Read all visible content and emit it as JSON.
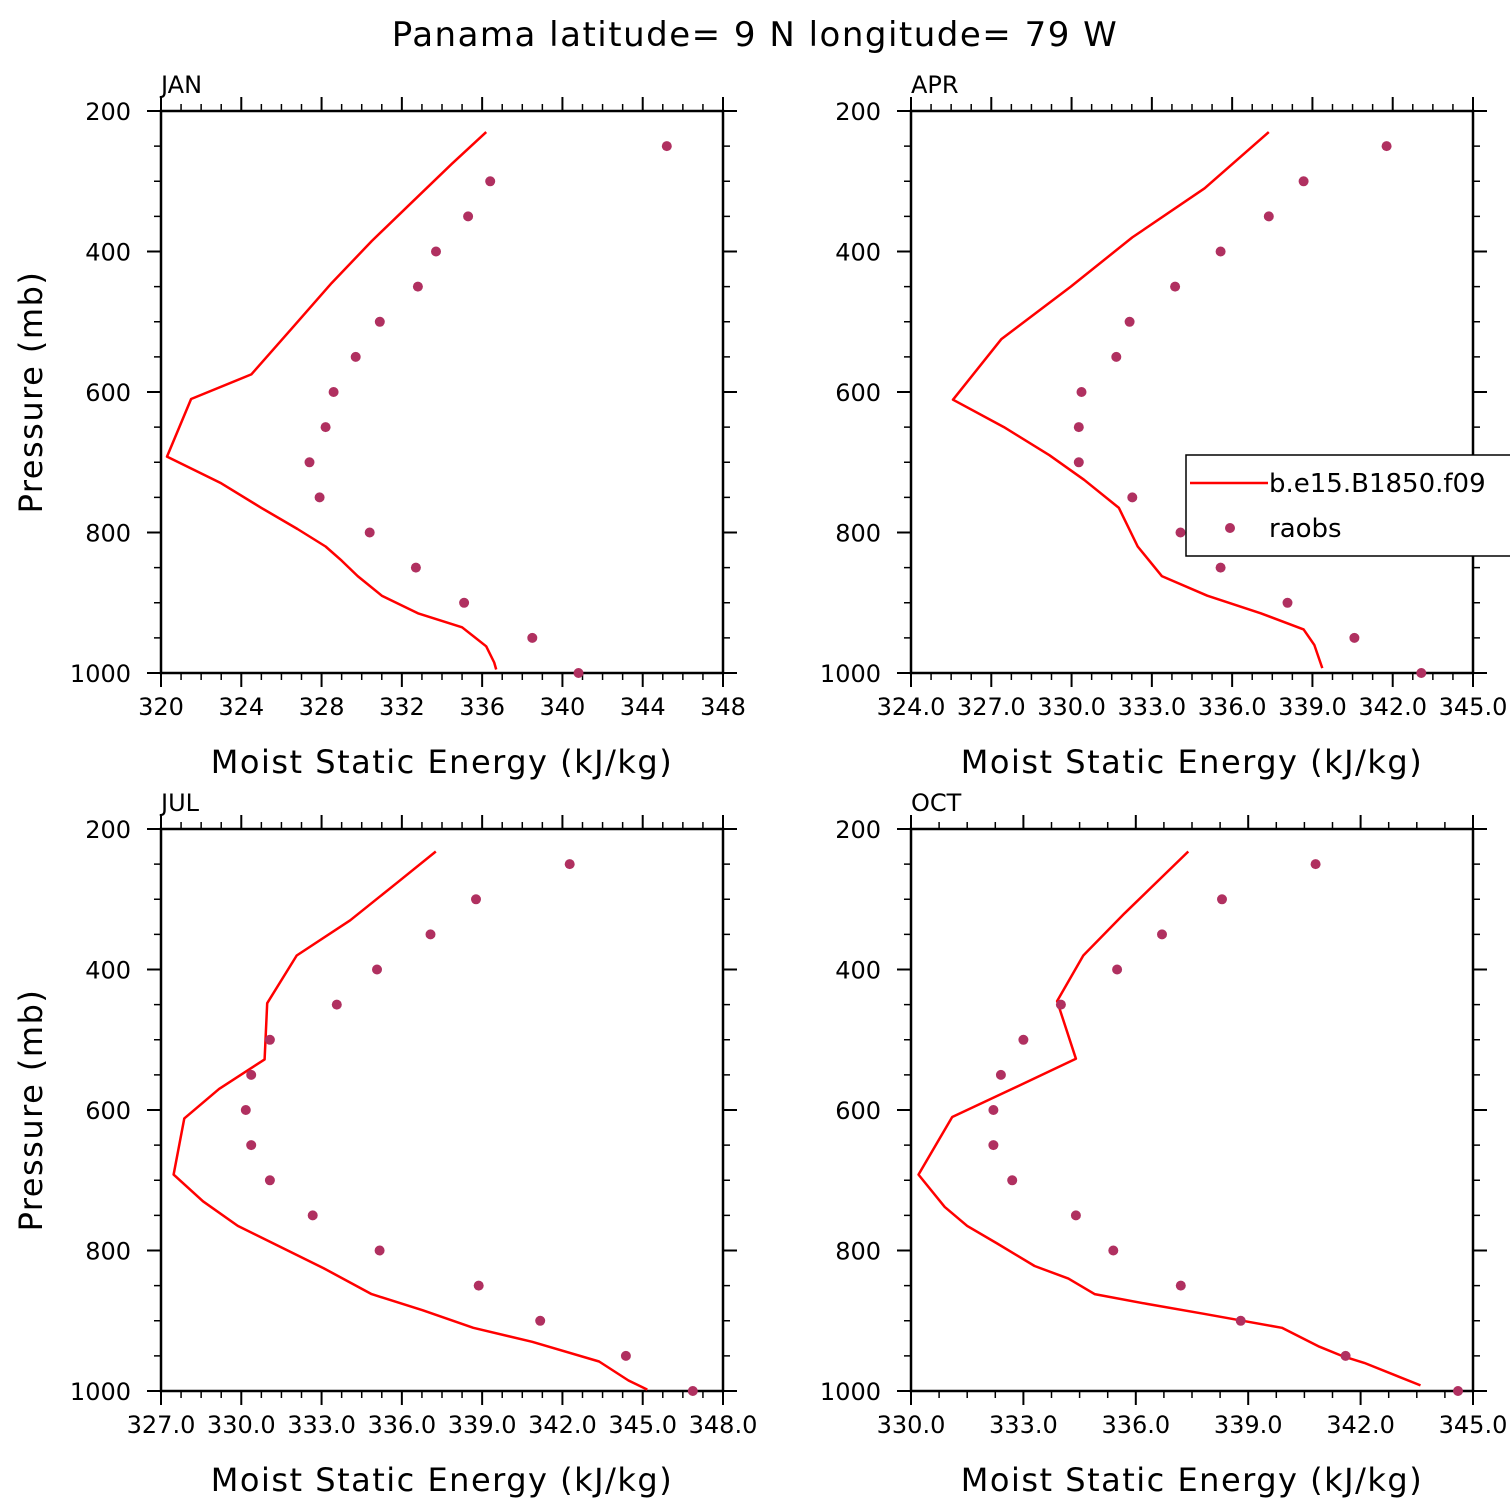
{
  "title": "Panama  latitude= 9 N longitude= 79 W",
  "colors": {
    "model": "#ff0000",
    "obs": "#b03060",
    "axis": "#000000"
  },
  "legend": {
    "model": "b.e15.B1850.f09",
    "obs": "raobs"
  },
  "chart_data": [
    {
      "panel": "JAN",
      "type": "line+scatter",
      "xlabel": "Moist Static Energy (kJ/kg)",
      "ylabel": "Pressure (mb)",
      "xlim": [
        320,
        348
      ],
      "ylim": [
        1000,
        200
      ],
      "xticks": [
        "320",
        "324",
        "328",
        "332",
        "336",
        "340",
        "344",
        "348"
      ],
      "yticks": [
        "200",
        "400",
        "600",
        "800",
        "1000"
      ],
      "model_name": "b.e15.B1850.f09",
      "model": [
        [
          336.2,
          230
        ],
        [
          334.5,
          275
        ],
        [
          332.5,
          330
        ],
        [
          330.5,
          385
        ],
        [
          328.5,
          445
        ],
        [
          326.5,
          510
        ],
        [
          324.5,
          575
        ],
        [
          321.5,
          610
        ],
        [
          320.3,
          692
        ],
        [
          323,
          730
        ],
        [
          325,
          765
        ],
        [
          326.8,
          795
        ],
        [
          328.2,
          820
        ],
        [
          329,
          840
        ],
        [
          329.8,
          862
        ],
        [
          331,
          890
        ],
        [
          332.8,
          915
        ],
        [
          335,
          935
        ],
        [
          336.2,
          962
        ],
        [
          336.6,
          985
        ],
        [
          336.7,
          995
        ]
      ],
      "obs_name": "raobs",
      "obs": [
        [
          345.2,
          250
        ],
        [
          336.4,
          300
        ],
        [
          335.3,
          350
        ],
        [
          333.7,
          400
        ],
        [
          332.8,
          450
        ],
        [
          330.9,
          500
        ],
        [
          329.7,
          550
        ],
        [
          328.6,
          600
        ],
        [
          328.2,
          650
        ],
        [
          327.4,
          700
        ],
        [
          327.9,
          750
        ],
        [
          330.4,
          800
        ],
        [
          332.7,
          850
        ],
        [
          335.1,
          900
        ],
        [
          338.5,
          950
        ],
        [
          340.8,
          1000
        ]
      ]
    },
    {
      "panel": "APR",
      "type": "line+scatter",
      "xlabel": "Moist Static Energy (kJ/kg)",
      "ylabel": "",
      "xlim": [
        324.03,
        345.03
      ],
      "ylim": [
        1000,
        200
      ],
      "xticks": [
        "324.0",
        "327.0",
        "330.0",
        "333.0",
        "336.0",
        "339.0",
        "342.0",
        "345.0"
      ],
      "yticks": [
        "200",
        "400",
        "600",
        "800",
        "1000"
      ],
      "model_name": "b.e15.B1850.f09",
      "model": [
        [
          337.4,
          230
        ],
        [
          335,
          310
        ],
        [
          332.3,
          380
        ],
        [
          330,
          450
        ],
        [
          327.4,
          525
        ],
        [
          325.6,
          611
        ],
        [
          327.5,
          650
        ],
        [
          329.2,
          690
        ],
        [
          330.5,
          725
        ],
        [
          331.8,
          765
        ],
        [
          332.5,
          820
        ],
        [
          333.4,
          862
        ],
        [
          335.1,
          890
        ],
        [
          337.1,
          915
        ],
        [
          338.7,
          938
        ],
        [
          339.1,
          960
        ],
        [
          339.4,
          993
        ]
      ],
      "obs_name": "raobs",
      "obs": [
        [
          341.8,
          250
        ],
        [
          338.7,
          300
        ],
        [
          337.4,
          350
        ],
        [
          335.6,
          400
        ],
        [
          333.9,
          450
        ],
        [
          332.2,
          500
        ],
        [
          331.7,
          550
        ],
        [
          330.4,
          600
        ],
        [
          330.3,
          650
        ],
        [
          330.3,
          700
        ],
        [
          332.3,
          750
        ],
        [
          334.1,
          800
        ],
        [
          335.6,
          850
        ],
        [
          338.1,
          900
        ],
        [
          340.6,
          950
        ],
        [
          343.1,
          1000
        ]
      ]
    },
    {
      "panel": "JUL",
      "type": "line+scatter",
      "xlabel": "Moist Static Energy (kJ/kg)",
      "ylabel": "Pressure (mb)",
      "xlim": [
        327.03,
        348.03
      ],
      "ylim": [
        1000,
        200
      ],
      "xticks": [
        "327.0",
        "330.0",
        "333.0",
        "336.0",
        "339.0",
        "342.0",
        "345.0",
        "348.0"
      ],
      "yticks": [
        "200",
        "400",
        "600",
        "800",
        "1000"
      ],
      "model_name": "b.e15.B1850.f09",
      "model": [
        [
          337.3,
          232
        ],
        [
          335.9,
          275
        ],
        [
          334.1,
          330
        ],
        [
          332.1,
          380
        ],
        [
          331,
          448
        ],
        [
          330.9,
          528
        ],
        [
          329.2,
          570
        ],
        [
          327.9,
          612
        ],
        [
          327.5,
          692
        ],
        [
          328.6,
          730
        ],
        [
          329.9,
          765
        ],
        [
          331.5,
          795
        ],
        [
          333.1,
          825
        ],
        [
          334.9,
          862
        ],
        [
          336.8,
          885
        ],
        [
          338.7,
          910
        ],
        [
          340.9,
          930
        ],
        [
          343.4,
          958
        ],
        [
          344.5,
          985
        ],
        [
          345.2,
          998
        ]
      ],
      "obs_name": "raobs",
      "obs": [
        [
          342.3,
          250
        ],
        [
          338.8,
          300
        ],
        [
          337.1,
          350
        ],
        [
          335.1,
          400
        ],
        [
          333.6,
          450
        ],
        [
          331.1,
          500
        ],
        [
          330.4,
          550
        ],
        [
          330.2,
          600
        ],
        [
          330.4,
          650
        ],
        [
          331.1,
          700
        ],
        [
          332.7,
          750
        ],
        [
          335.2,
          800
        ],
        [
          338.9,
          850
        ],
        [
          341.2,
          900
        ],
        [
          344.4,
          950
        ],
        [
          346.9,
          1000
        ]
      ]
    },
    {
      "panel": "OCT",
      "type": "line+scatter",
      "xlabel": "Moist Static Energy (kJ/kg)",
      "ylabel": "",
      "xlim": [
        330,
        345
      ],
      "ylim": [
        1000,
        200
      ],
      "xticks": [
        "330.0",
        "333.0",
        "336.0",
        "339.0",
        "342.0",
        "345.0"
      ],
      "yticks": [
        "200",
        "400",
        "600",
        "800",
        "1000"
      ],
      "model_name": "b.e15.B1850.f09",
      "model": [
        [
          337.4,
          232
        ],
        [
          335.7,
          320
        ],
        [
          334.6,
          380
        ],
        [
          333.9,
          445
        ],
        [
          334.4,
          527
        ],
        [
          332.7,
          570
        ],
        [
          331.1,
          610
        ],
        [
          330.2,
          692
        ],
        [
          330.9,
          738
        ],
        [
          331.5,
          765
        ],
        [
          332.3,
          790
        ],
        [
          333.3,
          822
        ],
        [
          334.2,
          840
        ],
        [
          334.9,
          862
        ],
        [
          336.3,
          876
        ],
        [
          337.8,
          890
        ],
        [
          339.9,
          910
        ],
        [
          340.9,
          937
        ],
        [
          341.5,
          950
        ],
        [
          342.1,
          960
        ],
        [
          343.6,
          992
        ]
      ],
      "obs_name": "raobs",
      "obs": [
        [
          340.8,
          250
        ],
        [
          338.3,
          300
        ],
        [
          336.7,
          350
        ],
        [
          335.5,
          400
        ],
        [
          334,
          450
        ],
        [
          333,
          500
        ],
        [
          332.4,
          550
        ],
        [
          332.2,
          600
        ],
        [
          332.2,
          650
        ],
        [
          332.7,
          700
        ],
        [
          334.4,
          750
        ],
        [
          335.4,
          800
        ],
        [
          337.2,
          850
        ],
        [
          338.8,
          900
        ],
        [
          341.6,
          950
        ],
        [
          344.6,
          1000
        ]
      ]
    }
  ]
}
